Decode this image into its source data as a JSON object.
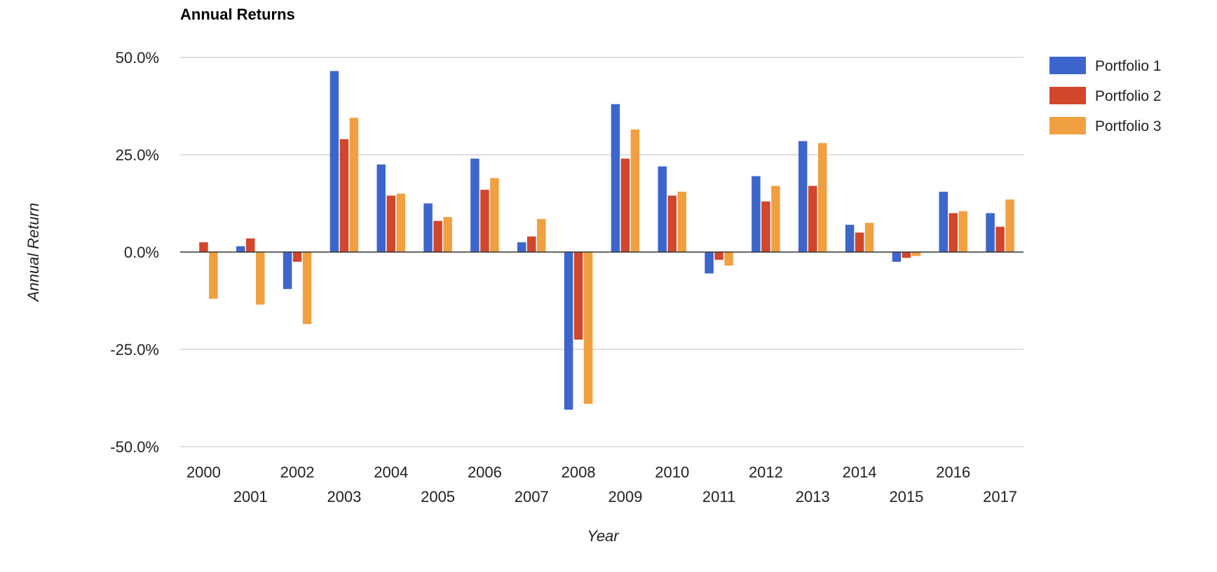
{
  "chart_data": {
    "type": "bar",
    "title": "Annual Returns",
    "xlabel": "Year",
    "ylabel": "Annual Return",
    "ylim": [
      -50,
      50
    ],
    "yticks": [
      50,
      25,
      0,
      -25,
      -50
    ],
    "ytick_labels": [
      "50.0%",
      "25.0%",
      "0.0%",
      "-25.0%",
      "-50.0%"
    ],
    "grid": true,
    "legend_position": "right",
    "categories": [
      "2000",
      "2001",
      "2002",
      "2003",
      "2004",
      "2005",
      "2006",
      "2007",
      "2008",
      "2009",
      "2010",
      "2011",
      "2012",
      "2013",
      "2014",
      "2015",
      "2016",
      "2017"
    ],
    "series": [
      {
        "name": "Portfolio 1",
        "color": "#3c66cc",
        "values": [
          0,
          1.5,
          -9.5,
          46.5,
          22.5,
          12.5,
          24,
          2.5,
          -40.5,
          38,
          22,
          -5.5,
          19.5,
          28.5,
          7,
          -2.5,
          15.5,
          10
        ]
      },
      {
        "name": "Portfolio 2",
        "color": "#d2462b",
        "values": [
          2.5,
          3.5,
          -2.5,
          29,
          14.5,
          8,
          16,
          4,
          -22.5,
          24,
          14.5,
          -2,
          13,
          17,
          5,
          -1.5,
          10,
          6.5
        ]
      },
      {
        "name": "Portfolio 3",
        "color": "#f0a040",
        "values": [
          -12,
          -13.5,
          -18.5,
          34.5,
          15,
          9,
          19,
          8.5,
          -39,
          31.5,
          15.5,
          -3.5,
          17,
          28,
          7.5,
          -1,
          10.5,
          13.5
        ]
      }
    ]
  }
}
